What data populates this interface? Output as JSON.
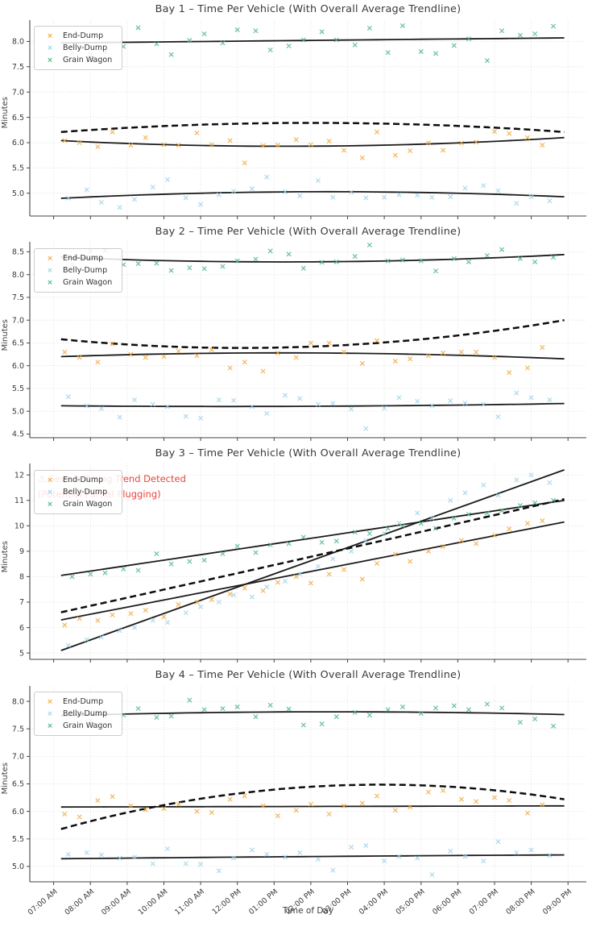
{
  "page": {
    "xlabel": "Time of Day",
    "ylabel": "Minutes"
  },
  "legend": {
    "items": [
      {
        "label": "End-Dump",
        "color": "#F0A73C"
      },
      {
        "label": "Belly-Dump",
        "color": "#9CD2EA"
      },
      {
        "label": "Grain Wagon",
        "color": "#4DB38C"
      }
    ]
  },
  "annotation": {
    "line1": "⚠ Severe Rising Trend Detected",
    "line2": "(Potential Partial Plugging)",
    "color": "#E8453C"
  },
  "axes": {
    "xlim": [
      6.35,
      21.5
    ],
    "trend_x": [
      7.2,
      14.05,
      20.9
    ],
    "x_tick_values": [
      7,
      8,
      9,
      10,
      11,
      12,
      13,
      14,
      15,
      16,
      17,
      18,
      19,
      20,
      21
    ],
    "x_tick_labels": [
      "07:00 AM",
      "08:00 AM",
      "09:00 AM",
      "10:00 AM",
      "11:00 AM",
      "12:00 PM",
      "01:00 PM",
      "02:00 PM",
      "03:00 PM",
      "04:00 PM",
      "05:00 PM",
      "06:00 PM",
      "07:00 PM",
      "08:00 PM",
      "09:00 PM"
    ]
  },
  "x_base": {
    "A": [
      7.3,
      7.7,
      8.2,
      8.6,
      9.1,
      9.5,
      10.0,
      10.4,
      10.9,
      11.3,
      11.8,
      12.2,
      12.7,
      13.1,
      13.6,
      14.0,
      14.5,
      14.9,
      15.4,
      15.8,
      16.3,
      16.7,
      17.2,
      17.6,
      18.1,
      18.5,
      19.0,
      19.4,
      19.9,
      20.3
    ],
    "B": [
      7.4,
      7.9,
      8.3,
      8.8,
      9.2,
      9.7,
      10.1,
      10.6,
      11.0,
      11.5,
      11.9,
      12.4,
      12.8,
      13.3,
      13.7,
      14.2,
      14.6,
      15.1,
      15.5,
      16.0,
      16.4,
      16.9,
      17.3,
      17.8,
      18.2,
      18.7,
      19.1,
      19.6,
      20.0,
      20.5
    ],
    "C": [
      7.5,
      8.0,
      8.4,
      8.9,
      9.3,
      9.8,
      10.2,
      10.7,
      11.1,
      11.6,
      12.0,
      12.5,
      12.9,
      13.4,
      13.8,
      14.3,
      14.7,
      15.2,
      15.6,
      16.1,
      16.5,
      17.0,
      17.4,
      17.9,
      18.3,
      18.8,
      19.2,
      19.7,
      20.1,
      20.6
    ]
  },
  "chart_data": [
    {
      "type": "scatter",
      "title": "Bay 1 – Time Per Vehicle (With Overall Average Trendline)",
      "ylabel": "Minutes",
      "ylim": [
        4.55,
        8.42
      ],
      "ytick_labels": [
        "5.0",
        "5.5",
        "6.0",
        "6.5",
        "7.0",
        "7.5",
        "8.0"
      ],
      "series": [
        {
          "name": "End-Dump",
          "color": "#F0A73C",
          "x_ref": "A",
          "y": [
            6.04,
            6.0,
            5.92,
            6.21,
            5.95,
            6.1,
            5.96,
            5.95,
            6.19,
            5.96,
            6.04,
            5.6,
            5.94,
            5.95,
            6.06,
            5.96,
            6.03,
            5.85,
            5.7,
            6.21,
            5.75,
            5.84,
            6.0,
            5.85,
            5.99,
            6.01,
            6.22,
            6.18,
            6.1,
            5.95
          ],
          "trend": [
            6.04,
            5.93,
            6.1
          ]
        },
        {
          "name": "Belly-Dump",
          "color": "#9CD2EA",
          "x_ref": "B",
          "y": [
            4.9,
            5.07,
            4.82,
            4.72,
            4.88,
            5.12,
            5.27,
            4.91,
            4.78,
            4.97,
            5.04,
            5.09,
            5.32,
            5.03,
            4.95,
            5.25,
            4.92,
            5.02,
            4.91,
            4.92,
            4.97,
            4.96,
            4.92,
            4.93,
            5.1,
            5.15,
            5.05,
            4.8,
            4.93,
            4.85
          ],
          "trend": [
            4.9,
            5.03,
            4.93
          ]
        },
        {
          "name": "Grain Wagon",
          "color": "#4DB38C",
          "x_ref": "C",
          "y": [
            7.77,
            7.75,
            7.79,
            7.9,
            8.27,
            7.95,
            7.74,
            8.02,
            8.15,
            7.97,
            8.23,
            8.21,
            7.83,
            7.91,
            8.03,
            8.19,
            8.03,
            7.93,
            8.26,
            7.78,
            8.31,
            7.8,
            7.76,
            7.92,
            8.05,
            7.62,
            8.21,
            8.12,
            8.15,
            8.3
          ],
          "trend": [
            7.97,
            8.02,
            8.07
          ]
        }
      ],
      "overall_trend": [
        6.21,
        6.39,
        6.21
      ]
    },
    {
      "type": "scatter",
      "title": "Bay 2 – Time Per Vehicle (With Overall Average Trendline)",
      "ylabel": "Minutes",
      "ylim": [
        4.42,
        8.72
      ],
      "ytick_labels": [
        "4.5",
        "5.0",
        "5.5",
        "6.0",
        "6.5",
        "7.0",
        "7.5",
        "8.0",
        "8.5"
      ],
      "series": [
        {
          "name": "End-Dump",
          "color": "#F0A73C",
          "x_ref": "A",
          "y": [
            6.3,
            6.18,
            6.08,
            6.48,
            6.25,
            6.18,
            6.2,
            6.32,
            6.22,
            6.35,
            5.95,
            6.08,
            5.88,
            6.28,
            6.18,
            6.5,
            6.5,
            6.3,
            6.05,
            6.55,
            6.1,
            6.15,
            6.22,
            6.28,
            6.3,
            6.3,
            6.18,
            5.85,
            5.95,
            6.4
          ],
          "trend": [
            6.2,
            6.28,
            6.15
          ]
        },
        {
          "name": "Belly-Dump",
          "color": "#9CD2EA",
          "x_ref": "B",
          "y": [
            5.32,
            5.12,
            5.06,
            4.87,
            5.25,
            5.15,
            5.1,
            4.89,
            4.85,
            5.25,
            5.24,
            5.1,
            4.95,
            5.35,
            5.28,
            5.15,
            5.17,
            5.05,
            4.62,
            5.07,
            5.3,
            5.22,
            5.12,
            5.23,
            5.18,
            5.15,
            4.88,
            5.4,
            5.3,
            5.25
          ],
          "trend": [
            5.12,
            5.11,
            5.17
          ]
        },
        {
          "name": "Grain Wagon",
          "color": "#4DB38C",
          "x_ref": "C",
          "y": [
            8.22,
            8.51,
            8.53,
            8.22,
            8.24,
            8.25,
            8.09,
            8.15,
            8.13,
            8.18,
            8.3,
            8.34,
            8.52,
            8.45,
            8.14,
            8.27,
            8.28,
            8.4,
            8.65,
            8.3,
            8.32,
            8.3,
            8.08,
            8.35,
            8.28,
            8.42,
            8.55,
            8.35,
            8.28,
            8.38
          ],
          "trend": [
            8.38,
            8.28,
            8.44
          ]
        }
      ],
      "overall_trend": [
        6.58,
        6.42,
        7.0
      ]
    },
    {
      "type": "scatter",
      "title": "Bay 3 – Time Per Vehicle (With Overall Average Trendline)",
      "ylabel": "Minutes",
      "ylim": [
        4.75,
        12.45
      ],
      "ytick_labels": [
        "5",
        "6",
        "7",
        "8",
        "9",
        "10",
        "11",
        "12"
      ],
      "series": [
        {
          "name": "End-Dump",
          "color": "#F0A73C",
          "x_ref": "A",
          "y": [
            6.1,
            6.35,
            6.28,
            6.5,
            6.55,
            6.68,
            6.42,
            6.9,
            7.0,
            7.1,
            7.32,
            7.55,
            7.45,
            7.78,
            8.0,
            7.75,
            8.1,
            8.28,
            7.9,
            8.52,
            8.88,
            8.6,
            9.0,
            9.18,
            9.42,
            9.3,
            9.62,
            9.88,
            10.1,
            10.2
          ],
          "trend": [
            6.3,
            8.22,
            10.15
          ]
        },
        {
          "name": "Belly-Dump",
          "color": "#9CD2EA",
          "x_ref": "B",
          "y": [
            5.3,
            5.52,
            5.62,
            5.88,
            6.0,
            6.28,
            6.2,
            6.58,
            6.82,
            7.0,
            7.28,
            7.2,
            7.6,
            7.82,
            8.1,
            8.4,
            8.7,
            9.0,
            9.42,
            9.7,
            10.1,
            10.5,
            10.3,
            11.0,
            11.3,
            11.6,
            11.2,
            11.8,
            12.0,
            11.7
          ],
          "trend": [
            5.1,
            8.65,
            12.2
          ]
        },
        {
          "name": "Grain Wagon",
          "color": "#4DB38C",
          "x_ref": "C",
          "y": [
            8.0,
            8.1,
            8.15,
            8.3,
            8.25,
            8.9,
            8.5,
            8.6,
            8.65,
            8.9,
            9.2,
            8.95,
            9.25,
            9.3,
            9.55,
            9.35,
            9.4,
            9.75,
            9.7,
            9.9,
            10.0,
            10.1,
            9.9,
            10.3,
            10.45,
            10.5,
            10.6,
            10.8,
            10.9,
            11.0
          ],
          "trend": [
            8.05,
            9.52,
            11.0
          ]
        }
      ],
      "overall_trend": [
        6.6,
        8.8,
        11.05
      ]
    },
    {
      "type": "scatter",
      "title": "Bay 4 – Time Per Vehicle (With Overall Average Trendline)",
      "ylabel": "Minutes",
      "ylim": [
        4.72,
        8.28
      ],
      "ytick_labels": [
        "5.0",
        "5.5",
        "6.0",
        "6.5",
        "7.0",
        "7.5",
        "8.0"
      ],
      "series": [
        {
          "name": "End-Dump",
          "color": "#F0A73C",
          "x_ref": "A",
          "y": [
            5.95,
            5.9,
            6.2,
            6.27,
            6.1,
            6.03,
            6.05,
            6.13,
            6.0,
            5.98,
            6.22,
            6.28,
            6.1,
            5.92,
            6.02,
            6.13,
            5.95,
            6.1,
            6.15,
            6.28,
            6.02,
            6.08,
            6.35,
            6.38,
            6.22,
            6.18,
            6.25,
            6.2,
            5.97,
            6.12
          ],
          "trend": [
            6.08,
            6.09,
            6.1
          ]
        },
        {
          "name": "Belly-Dump",
          "color": "#9CD2EA",
          "x_ref": "B",
          "y": [
            5.22,
            5.25,
            5.21,
            5.15,
            5.17,
            5.05,
            5.32,
            5.05,
            5.04,
            4.92,
            5.15,
            5.3,
            5.22,
            5.17,
            5.25,
            5.13,
            4.93,
            5.35,
            5.38,
            5.1,
            5.18,
            5.15,
            4.85,
            5.28,
            5.18,
            5.1,
            5.45,
            5.25,
            5.3,
            5.2
          ],
          "trend": [
            5.14,
            5.18,
            5.21
          ]
        },
        {
          "name": "Grain Wagon",
          "color": "#4DB38C",
          "x_ref": "C",
          "y": [
            7.78,
            7.65,
            7.72,
            7.75,
            7.87,
            7.71,
            7.73,
            8.02,
            7.85,
            7.87,
            7.9,
            7.72,
            7.93,
            7.86,
            7.57,
            7.59,
            7.72,
            7.8,
            7.75,
            7.85,
            7.9,
            7.78,
            7.88,
            7.92,
            7.85,
            7.95,
            7.88,
            7.62,
            7.68,
            7.55
          ],
          "trend": [
            7.74,
            7.81,
            7.76
          ]
        }
      ],
      "overall_trend": [
        5.68,
        6.45,
        6.22
      ]
    }
  ]
}
